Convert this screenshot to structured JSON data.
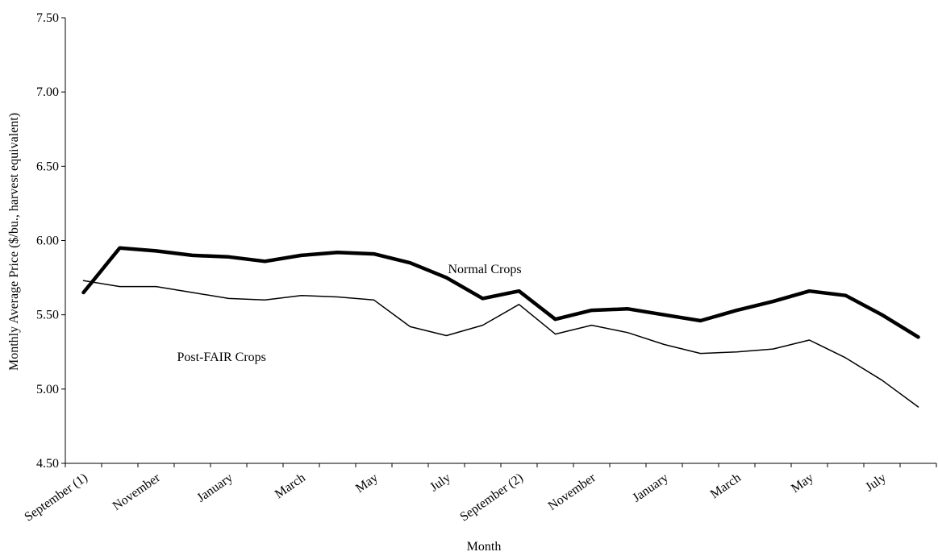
{
  "chart_data": {
    "type": "line",
    "title": "",
    "xlabel": "Month",
    "ylabel": "Monthly Average Price ($/bu., harvest equivalent)",
    "ylim": [
      4.5,
      7.5
    ],
    "yticks": [
      "4.50",
      "5.00",
      "5.50",
      "6.00",
      "6.50",
      "7.00",
      "7.50"
    ],
    "x_tick_labels": [
      "September (1)",
      "November",
      "January",
      "March",
      "May",
      "July",
      "September (2)",
      "November",
      "January",
      "March",
      "May",
      "July"
    ],
    "x": [
      "September (1)",
      "October",
      "November",
      "December",
      "January",
      "February",
      "March",
      "April",
      "May",
      "June",
      "July",
      "August",
      "September (2)",
      "October",
      "November",
      "December",
      "January",
      "February",
      "March",
      "April",
      "May",
      "June",
      "July",
      "August"
    ],
    "series": [
      {
        "name": "Normal Crops",
        "color": "#000000",
        "values": [
          5.65,
          5.95,
          5.93,
          5.9,
          5.89,
          5.86,
          5.9,
          5.92,
          5.91,
          5.85,
          5.75,
          5.61,
          5.66,
          5.47,
          5.53,
          5.54,
          5.5,
          5.46,
          5.53,
          5.59,
          5.66,
          5.63,
          5.5,
          5.35
        ]
      },
      {
        "name": "Post-FAIR Crops",
        "color": "#000000",
        "values": [
          5.73,
          5.69,
          5.69,
          5.65,
          5.61,
          5.6,
          5.63,
          5.62,
          5.6,
          5.42,
          5.36,
          5.43,
          5.57,
          5.37,
          5.43,
          5.38,
          5.3,
          5.24,
          5.25,
          5.27,
          5.33,
          5.21,
          5.06,
          4.88
        ]
      }
    ],
    "annotations": [
      {
        "text": "Normal Crops",
        "x": "July",
        "y": 5.78
      },
      {
        "text": "Post-FAIR Crops",
        "x": "November",
        "y": 5.19
      }
    ],
    "grid": false,
    "legend": "none"
  }
}
